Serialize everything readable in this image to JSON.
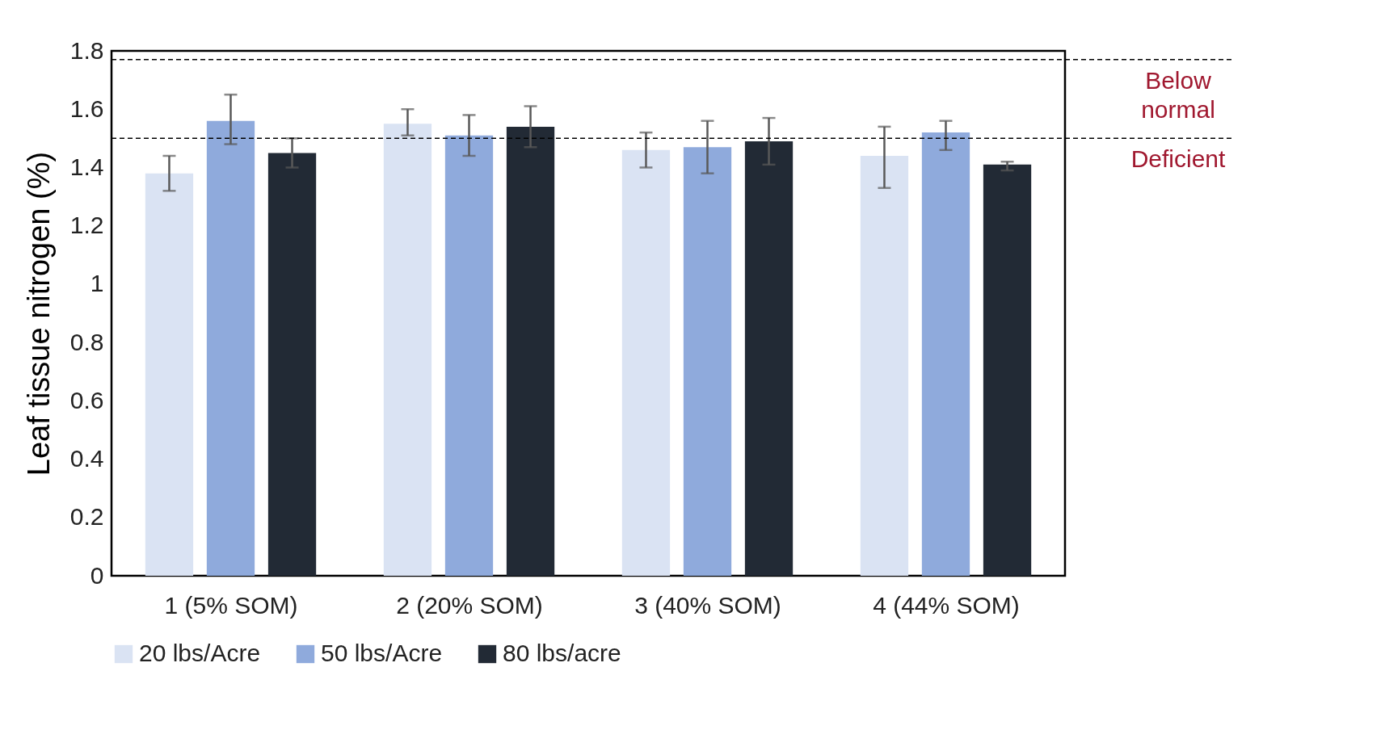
{
  "chart_data": {
    "type": "bar",
    "ylabel": "Leaf tissue nitrogen (%)",
    "categories": [
      "1 (5% SOM)",
      "2 (20% SOM)",
      "3 (40% SOM)",
      "4 (44% SOM)"
    ],
    "series": [
      {
        "name": "20 lbs/Acre",
        "color": "#dae3f3",
        "values": [
          1.38,
          1.55,
          1.46,
          1.44
        ],
        "errors": [
          [
            1.32,
            1.44
          ],
          [
            1.51,
            1.6
          ],
          [
            1.4,
            1.52
          ],
          [
            1.33,
            1.54
          ]
        ]
      },
      {
        "name": "50 lbs/Acre",
        "color": "#8faadc",
        "values": [
          1.56,
          1.51,
          1.47,
          1.52
        ],
        "errors": [
          [
            1.48,
            1.65
          ],
          [
            1.44,
            1.58
          ],
          [
            1.38,
            1.56
          ],
          [
            1.46,
            1.56
          ]
        ]
      },
      {
        "name": "80 lbs/acre",
        "color": "#222a35",
        "values": [
          1.45,
          1.54,
          1.49,
          1.41
        ],
        "errors": [
          [
            1.4,
            1.5
          ],
          [
            1.47,
            1.61
          ],
          [
            1.41,
            1.57
          ],
          [
            1.39,
            1.42
          ]
        ]
      }
    ],
    "ylim": [
      0,
      1.8
    ],
    "yticks": [
      0,
      0.2,
      0.4,
      0.6,
      0.8,
      1,
      1.2,
      1.4,
      1.6,
      1.8
    ],
    "ref_lines": [
      {
        "axis": "y",
        "value": 1.77,
        "line_style": "dashed",
        "color": "#000000",
        "label": "Below normal"
      },
      {
        "axis": "y",
        "value": 1.5,
        "line_style": "dashed",
        "color": "#000000",
        "label": "Deficient"
      }
    ],
    "grid": false,
    "legend": "bottom"
  }
}
